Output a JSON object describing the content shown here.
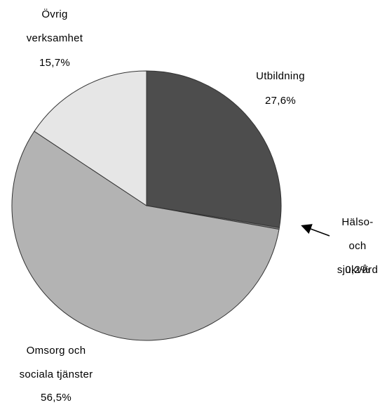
{
  "chart_data": {
    "type": "pie",
    "categories": [
      "Utbildning",
      "Hälso- och\nsjukvård",
      "Omsorg och\nsociala tjänster",
      "Övrig\nverksamhet"
    ],
    "values": [
      27.6,
      0.2,
      56.5,
      15.7
    ],
    "value_labels": [
      "27,6%",
      "0,2%",
      "56,5%",
      "15,7%"
    ],
    "colors": [
      "#4d4d4d",
      "#7f7f7f",
      "#b3b3b3",
      "#e6e6e6"
    ]
  }
}
